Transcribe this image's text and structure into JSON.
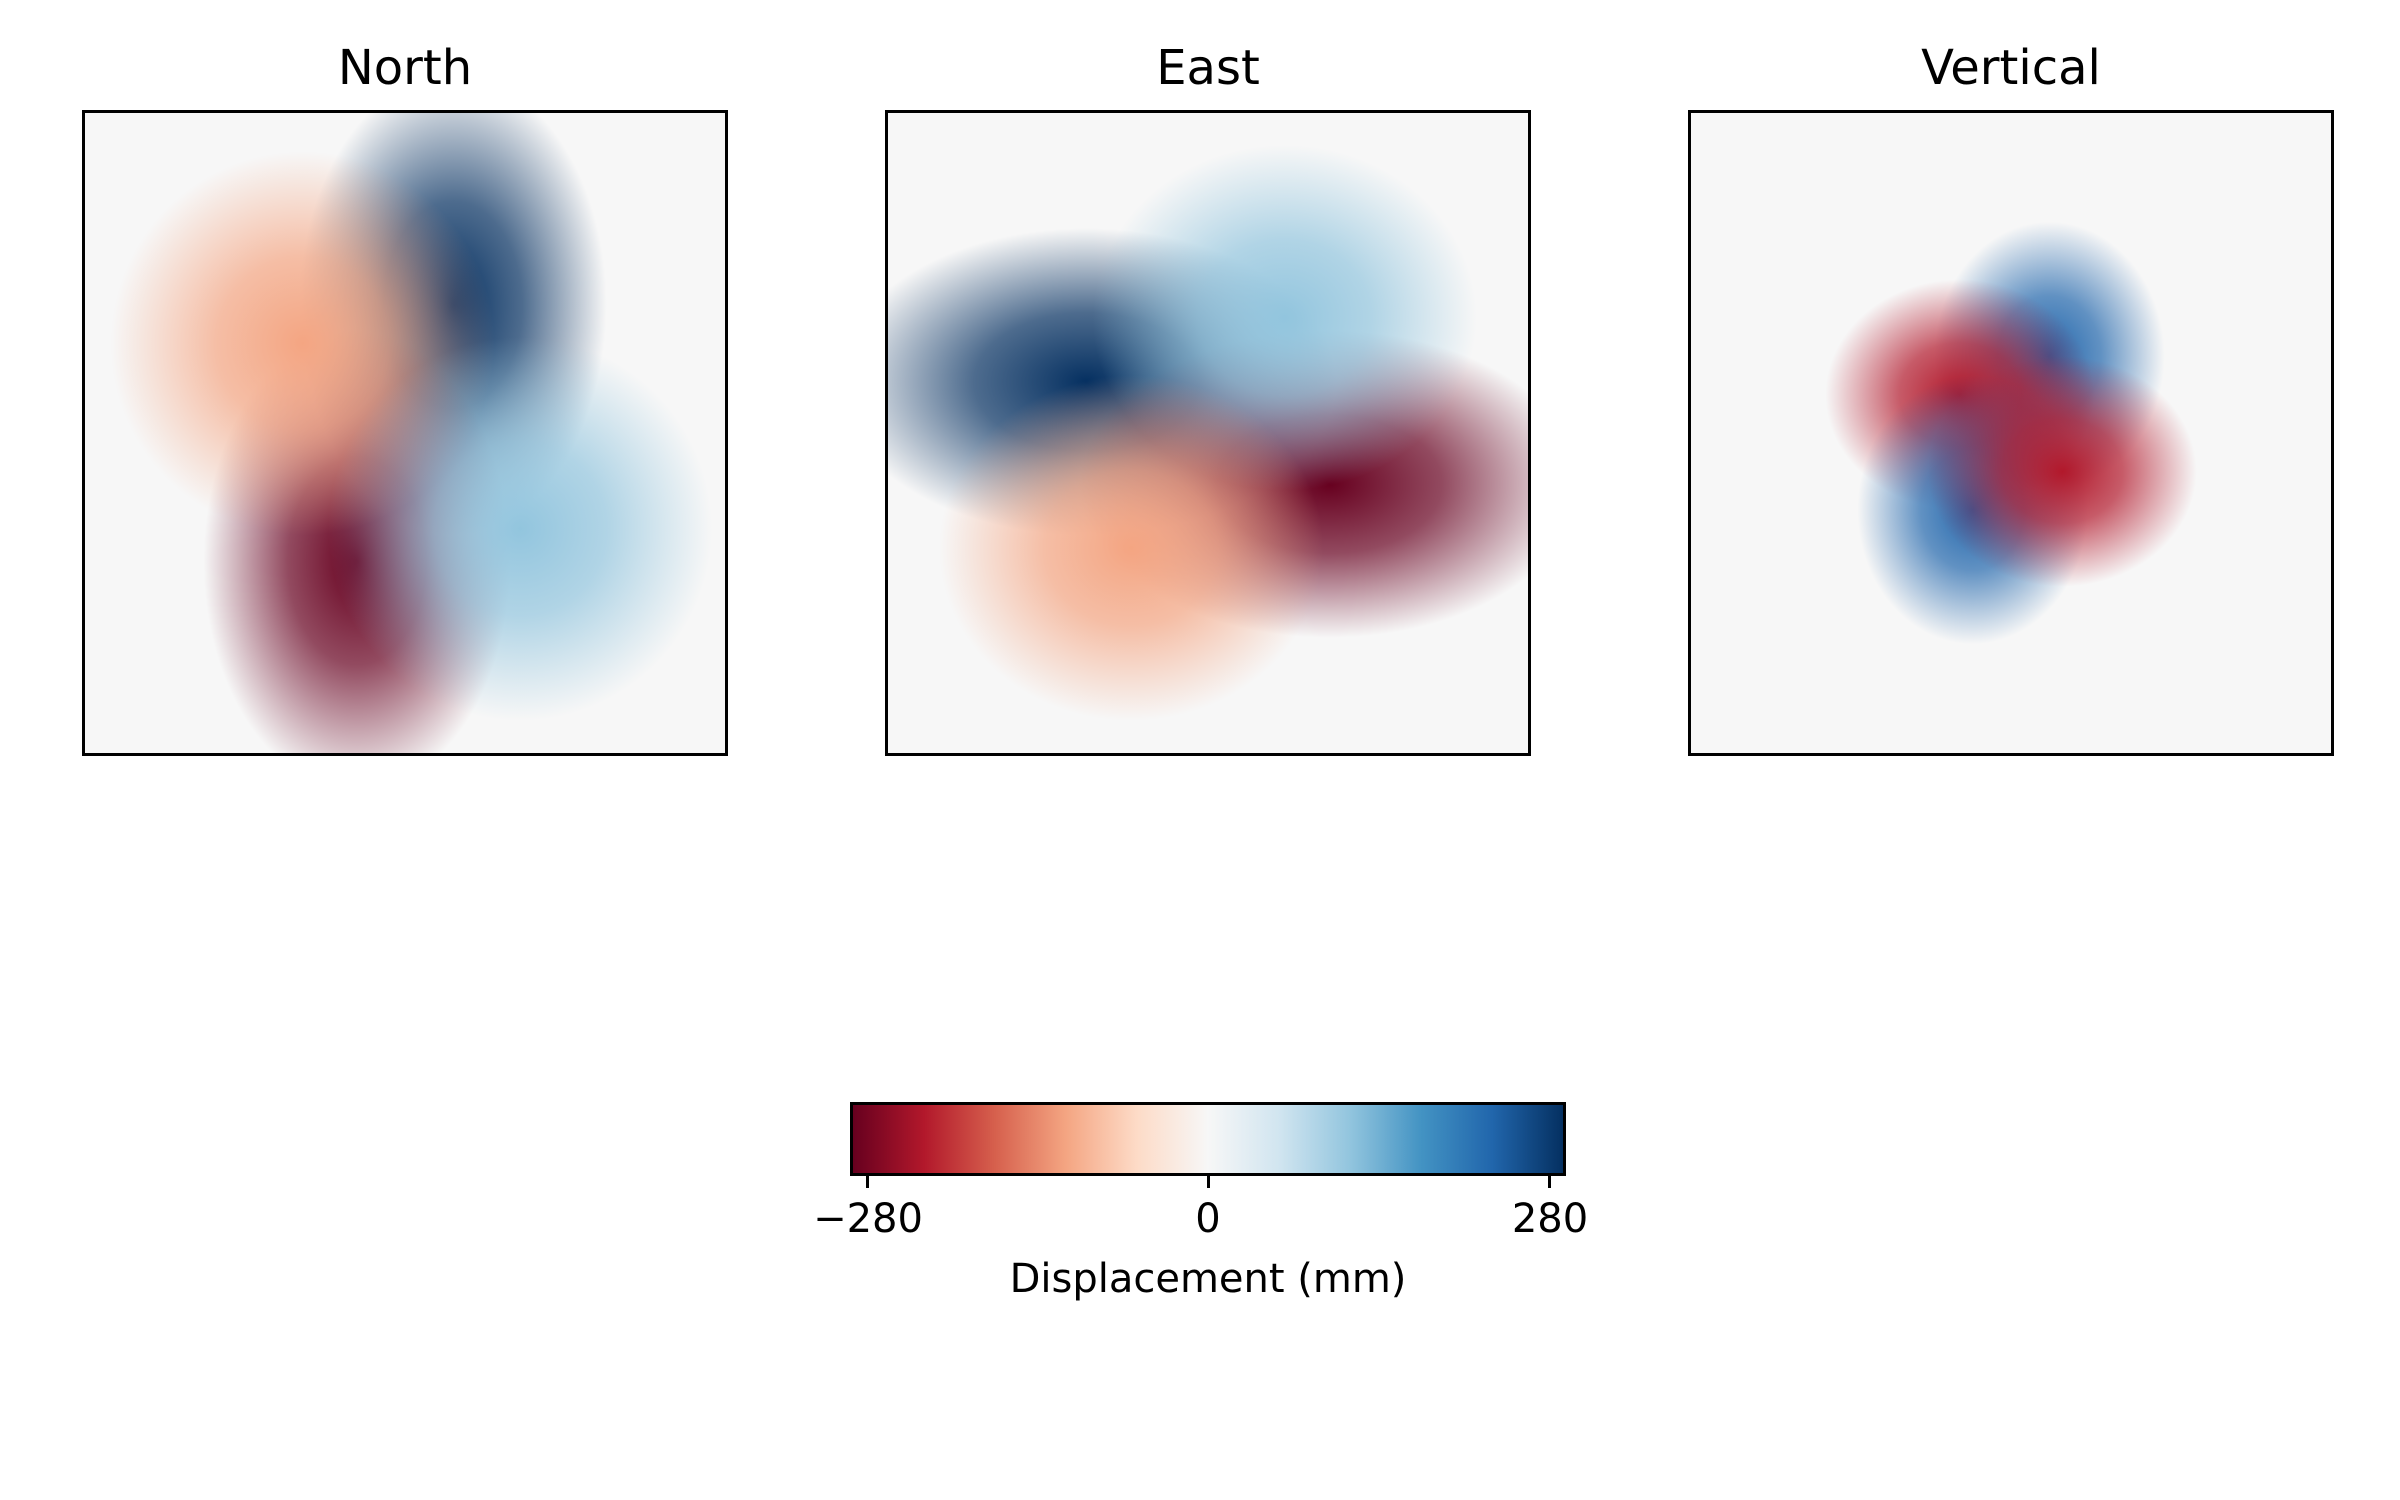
{
  "chart_data": {
    "type": "heatmap",
    "colormap": "RdBu",
    "colormap_stops": [
      "#67001f",
      "#b2182b",
      "#d6604d",
      "#f4a582",
      "#fddbc7",
      "#f7f7f7",
      "#d1e5f0",
      "#92c5de",
      "#4393c3",
      "#2166ac",
      "#053061"
    ],
    "panels": [
      {
        "title": "North",
        "peaks": [
          {
            "x": 0.15,
            "y": 0.4,
            "sx": 0.16,
            "sy": 0.24,
            "value": 280,
            "sign": "positive"
          },
          {
            "x": -0.15,
            "y": -0.4,
            "sx": 0.16,
            "sy": 0.24,
            "value": -280,
            "sign": "negative"
          },
          {
            "x": -0.32,
            "y": 0.28,
            "sx": 0.2,
            "sy": 0.2,
            "value": -110,
            "sign": "negative"
          },
          {
            "x": 0.36,
            "y": -0.3,
            "sx": 0.2,
            "sy": 0.2,
            "value": 110,
            "sign": "positive"
          }
        ]
      },
      {
        "title": "East",
        "peaks": [
          {
            "x": -0.38,
            "y": 0.16,
            "sx": 0.26,
            "sy": 0.16,
            "value": 280,
            "sign": "positive"
          },
          {
            "x": 0.38,
            "y": -0.16,
            "sx": 0.26,
            "sy": 0.16,
            "value": -280,
            "sign": "negative"
          },
          {
            "x": 0.24,
            "y": 0.36,
            "sx": 0.2,
            "sy": 0.18,
            "value": 110,
            "sign": "positive"
          },
          {
            "x": -0.24,
            "y": -0.36,
            "sx": 0.2,
            "sy": 0.18,
            "value": -110,
            "sign": "negative"
          }
        ]
      },
      {
        "title": "Vertical",
        "peaks": [
          {
            "x": 0.12,
            "y": 0.24,
            "sx": 0.12,
            "sy": 0.14,
            "value": 220,
            "sign": "positive"
          },
          {
            "x": -0.16,
            "y": 0.12,
            "sx": 0.14,
            "sy": 0.12,
            "value": -200,
            "sign": "negative"
          },
          {
            "x": -0.12,
            "y": -0.24,
            "sx": 0.12,
            "sy": 0.14,
            "value": 220,
            "sign": "positive"
          },
          {
            "x": 0.16,
            "y": -0.12,
            "sx": 0.14,
            "sy": 0.12,
            "value": -200,
            "sign": "negative"
          }
        ]
      }
    ],
    "colorbar": {
      "label": "Displacement (mm)",
      "vmin": -280,
      "vmax": 280,
      "ticks": [
        -280,
        0,
        280
      ],
      "tick_labels": [
        "−280",
        "0",
        "280"
      ]
    }
  }
}
